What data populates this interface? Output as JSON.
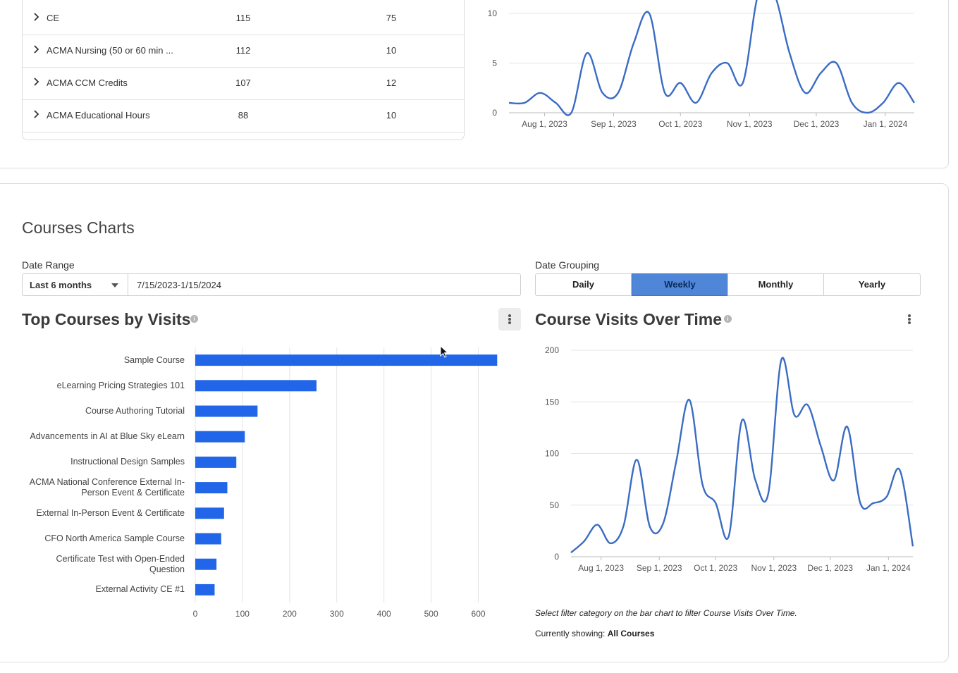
{
  "table": {
    "rows": [
      {
        "name": "CE",
        "v1": "115",
        "v2": "75"
      },
      {
        "name": "ACMA Nursing (50 or 60 min ...",
        "v1": "112",
        "v2": "10"
      },
      {
        "name": "ACMA CCM Credits",
        "v1": "107",
        "v2": "12"
      },
      {
        "name": "ACMA Educational Hours",
        "v1": "88",
        "v2": "10"
      }
    ]
  },
  "courses_charts": {
    "title": "Courses Charts",
    "date_range": {
      "label": "Date Range",
      "preset": "Last 6 months",
      "value": "7/15/2023-1/15/2024"
    },
    "date_grouping": {
      "label": "Date Grouping",
      "options": [
        "Daily",
        "Weekly",
        "Monthly",
        "Yearly"
      ],
      "selected": "Weekly"
    },
    "top_courses": {
      "title": "Top Courses by Visits"
    },
    "visits_over_time": {
      "title": "Course Visits Over Time"
    },
    "note": "Select filter category on the bar chart to filter Course Visits Over Time.",
    "showing_label": "Currently showing:",
    "showing_value": "All Courses"
  },
  "colors": {
    "bar": "#2166e8",
    "line": "#3a6cc4",
    "active_segment": "#4f86d8"
  },
  "chart_data": [
    {
      "type": "line",
      "title": "",
      "x_ticks": [
        "Aug 1, 2023",
        "Sep 1, 2023",
        "Oct 1, 2023",
        "Nov 1, 2023",
        "Dec 1, 2023",
        "Jan 1, 2024"
      ],
      "y_ticks": [
        "0",
        "5",
        "10"
      ],
      "ylim": [
        0,
        10
      ],
      "xlim": [
        "2023-07-16",
        "2024-01-14"
      ],
      "grid": true,
      "x": [
        "2023-07-16",
        "2023-07-23",
        "2023-07-30",
        "2023-08-06",
        "2023-08-13",
        "2023-08-20",
        "2023-08-27",
        "2023-09-03",
        "2023-09-10",
        "2023-09-17",
        "2023-09-24",
        "2023-10-01",
        "2023-10-08",
        "2023-10-15",
        "2023-10-22",
        "2023-10-29",
        "2023-11-05",
        "2023-11-12",
        "2023-11-19",
        "2023-11-26",
        "2023-12-03",
        "2023-12-10",
        "2023-12-17",
        "2023-12-24",
        "2023-12-31",
        "2024-01-07",
        "2024-01-14"
      ],
      "values": [
        1,
        1,
        2,
        1,
        0,
        6,
        2,
        2,
        7,
        10,
        2,
        3,
        1,
        4,
        5,
        3,
        12,
        12,
        6,
        2,
        4,
        5,
        1,
        0,
        1,
        3,
        1
      ]
    },
    {
      "type": "bar",
      "title": "Top Courses by Visits",
      "orientation": "horizontal",
      "categories": [
        "Sample Course",
        "eLearning Pricing Strategies 101",
        "Course Authoring Tutorial",
        "Advancements in AI at Blue Sky eLearn",
        "Instructional Design Samples",
        "ACMA National Conference External In-Person Event & Certificate",
        "External In-Person Event & Certificate",
        "CFO North America Sample Course",
        "Certificate Test with Open-Ended Question",
        "External Activity CE #1"
      ],
      "category_lines": [
        [
          "Sample Course"
        ],
        [
          "eLearning Pricing Strategies 101"
        ],
        [
          "Course Authoring Tutorial"
        ],
        [
          "Advancements in AI at Blue Sky eLearn"
        ],
        [
          "Instructional Design Samples"
        ],
        [
          "ACMA National Conference External In-",
          "Person Event & Certificate"
        ],
        [
          "External In-Person Event & Certificate"
        ],
        [
          "CFO North America Sample Course"
        ],
        [
          "Certificate Test with Open-Ended",
          "Question"
        ],
        [
          "External Activity CE #1"
        ]
      ],
      "values": [
        640,
        257,
        132,
        105,
        87,
        68,
        61,
        55,
        45,
        41
      ],
      "xlim": [
        0,
        650
      ],
      "x_ticks": [
        "0",
        "100",
        "200",
        "300",
        "400",
        "500",
        "600"
      ],
      "grid": true
    },
    {
      "type": "line",
      "title": "Course Visits Over Time",
      "x_ticks": [
        "Aug 1, 2023",
        "Sep 1, 2023",
        "Oct 1, 2023",
        "Nov 1, 2023",
        "Dec 1, 2023",
        "Jan 1, 2024"
      ],
      "y_ticks": [
        "0",
        "50",
        "100",
        "150",
        "200"
      ],
      "ylim": [
        0,
        200
      ],
      "xlim": [
        "2023-07-16",
        "2024-01-14"
      ],
      "grid": true,
      "x": [
        "2023-07-16",
        "2023-07-23",
        "2023-07-30",
        "2023-08-06",
        "2023-08-13",
        "2023-08-20",
        "2023-08-27",
        "2023-09-03",
        "2023-09-10",
        "2023-09-17",
        "2023-09-24",
        "2023-10-01",
        "2023-10-08",
        "2023-10-15",
        "2023-10-22",
        "2023-10-29",
        "2023-11-05",
        "2023-11-12",
        "2023-11-19",
        "2023-11-26",
        "2023-12-03",
        "2023-12-10",
        "2023-12-17",
        "2023-12-24",
        "2023-12-31",
        "2024-01-07",
        "2024-01-14"
      ],
      "values": [
        4,
        15,
        31,
        13,
        30,
        94,
        29,
        32,
        92,
        152,
        70,
        52,
        20,
        132,
        75,
        61,
        191,
        137,
        147,
        107,
        74,
        126,
        52,
        52,
        58,
        84,
        10
      ]
    }
  ]
}
